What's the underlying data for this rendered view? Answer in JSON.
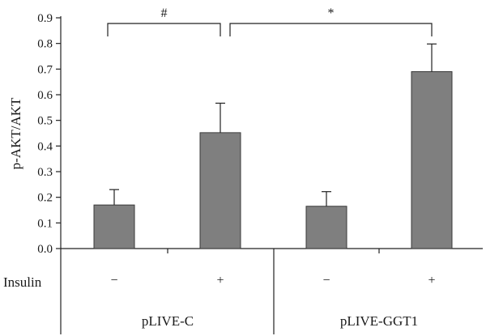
{
  "chart_data": {
    "type": "bar",
    "title": "",
    "xlabel": "",
    "ylabel": "p-AKT/AKT",
    "ylim": [
      0,
      0.9
    ],
    "yticks": [
      "0.0",
      "0.1",
      "0.2",
      "0.3",
      "0.4",
      "0.5",
      "0.6",
      "0.7",
      "0.8",
      "0.9"
    ],
    "grid": false,
    "categories": [
      "pLIVE-C −",
      "pLIVE-C +",
      "pLIVE-GGT1 −",
      "pLIVE-GGT1 +"
    ],
    "series": [
      {
        "values": [
          0.17,
          0.452,
          0.165,
          0.69
        ],
        "errors": [
          0.06,
          0.115,
          0.057,
          0.108
        ],
        "color": "#7f7f7f"
      }
    ],
    "significance": [
      {
        "from": 0,
        "to": 1,
        "mark": "#"
      },
      {
        "from": 1,
        "to": 3,
        "mark": "*"
      }
    ],
    "factor_table": {
      "row_label": "Insulin",
      "insulin": [
        "−",
        "+",
        "−",
        "+"
      ],
      "groups": [
        {
          "label": "pLIVE-C",
          "span": [
            0,
            1
          ]
        },
        {
          "label": "pLIVE-GGT1",
          "span": [
            2,
            3
          ]
        }
      ]
    }
  },
  "colors": {
    "bar": "#7f7f7f",
    "bar_stroke": "#3a3a3a",
    "axis": "#222222"
  }
}
